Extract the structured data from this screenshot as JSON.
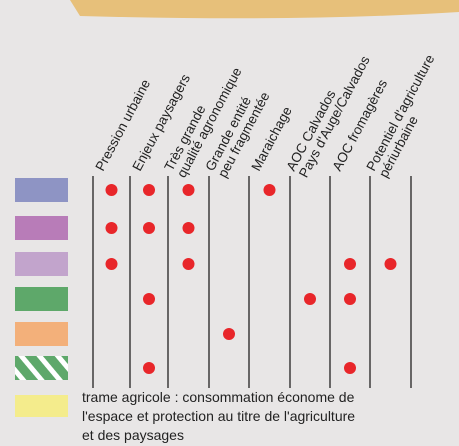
{
  "columns": [
    {
      "lines": [
        "Pression urbaine"
      ]
    },
    {
      "lines": [
        "Enjeux paysagers"
      ]
    },
    {
      "lines": [
        "Très grande",
        "qualité agronomique"
      ]
    },
    {
      "lines": [
        "Grande entité",
        "peu fragmentée"
      ]
    },
    {
      "lines": [
        "Maraichage"
      ]
    },
    {
      "lines": [
        "AOC Calvados",
        "Pays d'Auge/Calvados"
      ]
    },
    {
      "lines": [
        "AOC fromagères"
      ]
    },
    {
      "lines": [
        "Potentiel d'agriculture",
        "périurbaine"
      ]
    }
  ],
  "rows": [
    {
      "color": "#8e94c4",
      "dots": [
        true,
        true,
        true,
        false,
        true,
        false,
        false,
        false
      ]
    },
    {
      "color": "#b87cb8",
      "dots": [
        true,
        true,
        true,
        false,
        false,
        false,
        false,
        false
      ]
    },
    {
      "color": "#c2a4cc",
      "dots": [
        true,
        false,
        true,
        false,
        false,
        false,
        true,
        true
      ]
    },
    {
      "color": "#5ea86a",
      "dots": [
        false,
        true,
        false,
        false,
        false,
        true,
        true,
        false
      ]
    },
    {
      "color": "#f3b07a",
      "dots": [
        false,
        false,
        false,
        true,
        false,
        false,
        false,
        false
      ]
    },
    {
      "color": "#5ea86a",
      "dots": [
        false,
        true,
        false,
        false,
        false,
        false,
        true,
        false
      ]
    }
  ],
  "legend": {
    "color": "#f4ec8c",
    "lines": [
      "trame agricole : consommation économe de",
      "l'espace et protection au titre de l'agriculture",
      "et des paysages"
    ]
  }
}
